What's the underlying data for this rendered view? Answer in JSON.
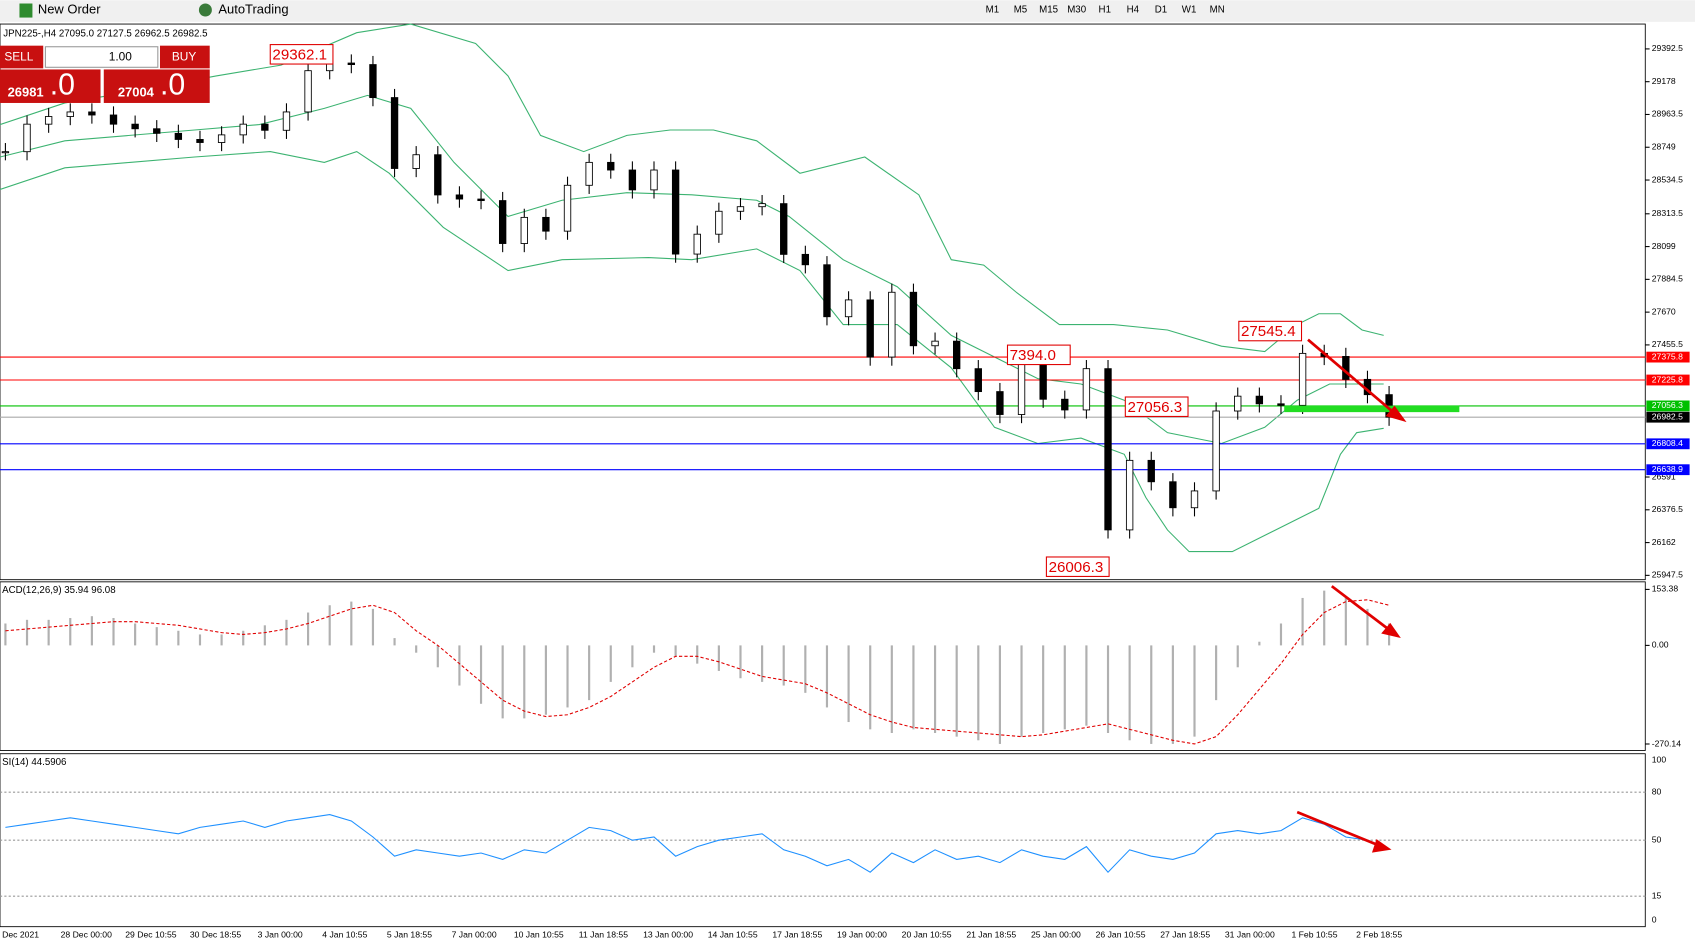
{
  "toolbar": {
    "new_order": "New Order",
    "autotrading": "AutoTrading",
    "timeframes": [
      "M1",
      "M5",
      "M15",
      "M30",
      "H1",
      "H4",
      "D1",
      "W1",
      "MN"
    ]
  },
  "trade_panel": {
    "sell": "SELL",
    "lot": "1.00",
    "buy": "BUY",
    "sell_price": "26981",
    "sell_frac": ".0",
    "buy_price": "27004",
    "buy_frac": ".0"
  },
  "chart": {
    "header": "JPN225-,H4  27095.0 27127.5 26962.5 26982.5",
    "ylim": [
      25947.5,
      29392.5
    ],
    "yticks": [
      29392.5,
      29178.0,
      28963.5,
      28749.0,
      28534.5,
      28313.5,
      28099.0,
      27884.5,
      27670.0,
      27455.5,
      26591.0,
      26376.5,
      26162.0,
      25947.5
    ],
    "levels": [
      {
        "value": 27375.8,
        "color": "#ff0000"
      },
      {
        "value": 27225.8,
        "color": "#ff0000"
      },
      {
        "value": 27056.3,
        "color": "#00c000"
      },
      {
        "value": 26982.5,
        "color": "#000000"
      },
      {
        "value": 26808.4,
        "color": "#0000ff"
      },
      {
        "value": 26638.9,
        "color": "#0000ff"
      }
    ],
    "annotations": [
      "29362.1",
      "7394.0",
      "27545.4",
      "27056.3",
      "26006.3"
    ],
    "closes": [
      28720,
      28900,
      28950,
      28980,
      28960,
      28900,
      28870,
      28840,
      28800,
      28780,
      28830,
      28900,
      28860,
      28980,
      29250,
      29300,
      29290,
      29074,
      28610,
      28700,
      28437,
      28410,
      28400,
      28119,
      28290,
      28200,
      28500,
      28650,
      28600,
      28470,
      28600,
      28050,
      28180,
      28330,
      28360,
      28380,
      28048,
      27980,
      27640,
      27750,
      27376,
      27800,
      27450,
      27480,
      27300,
      27150,
      27000,
      27350,
      27100,
      27030,
      27300,
      26245,
      26700,
      26560,
      26390,
      26500,
      27023,
      27120,
      27070,
      27060,
      27400,
      27380,
      27230,
      27130,
      26982.5
    ]
  },
  "macd": {
    "label": "ACD(12,26,9) 35.94 96.08",
    "ylim": [
      -270.14,
      153.38
    ],
    "yticks": [
      153.38,
      {
        "value": 0,
        "label": "0.00"
      },
      -270.14
    ],
    "histogram": [
      60,
      70,
      70,
      75,
      80,
      75,
      60,
      50,
      40,
      30,
      30,
      40,
      55,
      70,
      90,
      110,
      120,
      100,
      20,
      -20,
      -60,
      -110,
      -160,
      -200,
      -200,
      -190,
      -170,
      -150,
      -100,
      -60,
      -20,
      -30,
      -50,
      -70,
      -90,
      -100,
      -110,
      -130,
      -170,
      -210,
      -230,
      -240,
      -230,
      -240,
      -250,
      -260,
      -270,
      -250,
      -240,
      -230,
      -220,
      -240,
      -260,
      -270,
      -270,
      -250,
      -150,
      -60,
      10,
      60,
      130,
      150,
      130,
      100,
      60
    ],
    "signal": [
      40,
      45,
      50,
      55,
      60,
      65,
      65,
      60,
      55,
      45,
      35,
      30,
      35,
      45,
      60,
      80,
      100,
      110,
      90,
      40,
      0,
      -50,
      -100,
      -150,
      -180,
      -195,
      -190,
      -170,
      -140,
      -100,
      -60,
      -30,
      -30,
      -45,
      -65,
      -85,
      -95,
      -105,
      -130,
      -160,
      -190,
      -210,
      -225,
      -230,
      -235,
      -240,
      -245,
      -250,
      -245,
      -235,
      -225,
      -215,
      -230,
      -245,
      -260,
      -270,
      -250,
      -190,
      -120,
      -50,
      30,
      90,
      120,
      125,
      110
    ]
  },
  "rsi": {
    "label": "SI(14) 44.5906",
    "ylim": [
      0,
      100
    ],
    "yticks": [
      100,
      80,
      50,
      15,
      0
    ],
    "values": [
      58,
      60,
      62,
      64,
      62,
      60,
      58,
      56,
      54,
      58,
      60,
      62,
      58,
      62,
      64,
      66,
      62,
      52,
      40,
      44,
      42,
      40,
      42,
      38,
      44,
      42,
      50,
      58,
      56,
      50,
      52,
      40,
      46,
      50,
      52,
      54,
      44,
      40,
      34,
      38,
      30,
      42,
      36,
      44,
      38,
      40,
      36,
      44,
      40,
      38,
      46,
      30,
      44,
      40,
      38,
      42,
      54,
      56,
      54,
      56,
      64,
      60,
      52,
      50,
      44.5906
    ]
  },
  "time_labels": [
    "Dec 2021",
    "28 Dec 00:00",
    "29 Dec 10:55",
    "30 Dec 18:55",
    "3 Jan 00:00",
    "4 Jan 10:55",
    "5 Jan 18:55",
    "7 Jan 00:00",
    "10 Jan 10:55",
    "11 Jan 18:55",
    "13 Jan 00:00",
    "14 Jan 10:55",
    "17 Jan 18:55",
    "19 Jan 00:00",
    "20 Jan 10:55",
    "21 Jan 18:55",
    "25 Jan 00:00",
    "26 Jan 10:55",
    "27 Jan 18:55",
    "31 Jan 00:00",
    "1 Feb 10:55",
    "2 Feb 18:55"
  ]
}
